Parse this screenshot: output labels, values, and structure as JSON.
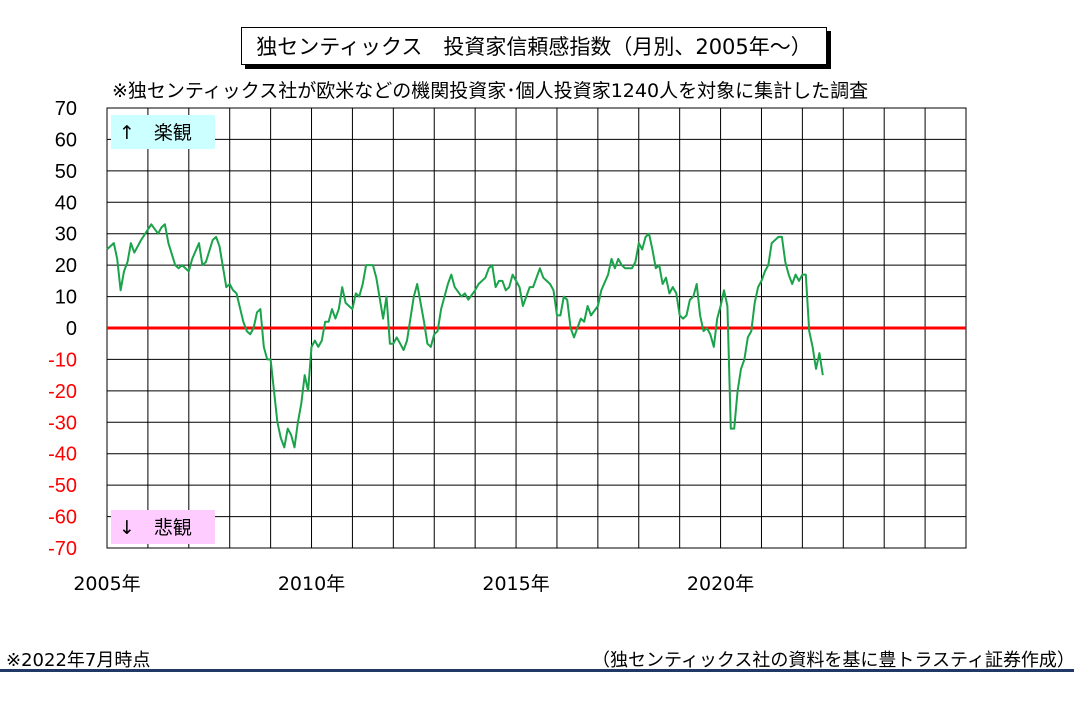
{
  "title": "独センティックス　投資家信頼感指数（月別、2005年～）",
  "subtitle": "※独センティックス社が欧米などの機関投資家･個人投資家1240人を対象に集計した調査",
  "note_left": "※2022年7月時点",
  "note_right": "（独センティックス社の資料を基に豊トラスティ証券作成）",
  "annotations": {
    "optimistic": "↑　楽観",
    "pessimistic": "↓　悲観"
  },
  "colors": {
    "line": "#1aa34a",
    "zero_line": "#ff0000",
    "positive_ticks": "#000000",
    "negative_ticks": "#ff0000",
    "optimistic_bg": "#ccffff",
    "pessimistic_bg": "#ffccff",
    "footer_line": "#1f3864"
  },
  "chart_data": {
    "type": "line",
    "title": "独センティックス　投資家信頼感指数（月別、2005年～）",
    "xlabel": "",
    "ylabel": "",
    "ylim": [
      -70,
      70
    ],
    "yticks": [
      70,
      60,
      50,
      40,
      30,
      20,
      10,
      0,
      -10,
      -20,
      -30,
      -40,
      -50,
      -60,
      -70
    ],
    "ytick_labels": [
      "70",
      "60",
      "50",
      "40",
      "30",
      "20",
      "10",
      "0",
      "-10",
      "-20",
      "-30",
      "-40",
      "-50",
      "-60",
      "-70"
    ],
    "xlim": [
      "2005-01",
      "2025-12"
    ],
    "xticks": [
      "2005-01",
      "2010-01",
      "2015-01",
      "2020-01"
    ],
    "xtick_labels": [
      "2005年",
      "2010年",
      "2015年",
      "2020年"
    ],
    "grid": true,
    "reference_line": 0,
    "series": [
      {
        "points": [
          [
            "2005-01",
            25
          ],
          [
            "2005-03",
            27
          ],
          [
            "2005-04",
            22
          ],
          [
            "2005-05",
            12
          ],
          [
            "2005-06",
            18
          ],
          [
            "2005-07",
            21
          ],
          [
            "2005-08",
            27
          ],
          [
            "2005-09",
            24
          ],
          [
            "2005-11",
            28
          ],
          [
            "2006-02",
            33
          ],
          [
            "2006-04",
            30
          ],
          [
            "2006-05",
            32
          ],
          [
            "2006-06",
            33
          ],
          [
            "2006-07",
            27
          ],
          [
            "2006-09",
            20
          ],
          [
            "2006-10",
            19
          ],
          [
            "2006-11",
            20
          ],
          [
            "2007-01",
            18
          ],
          [
            "2007-02",
            22
          ],
          [
            "2007-04",
            27
          ],
          [
            "2007-05",
            20
          ],
          [
            "2007-06",
            21
          ],
          [
            "2007-08",
            28
          ],
          [
            "2007-09",
            29
          ],
          [
            "2007-10",
            26
          ],
          [
            "2007-12",
            13
          ],
          [
            "2008-01",
            14
          ],
          [
            "2008-02",
            12
          ],
          [
            "2008-03",
            11
          ],
          [
            "2008-05",
            2
          ],
          [
            "2008-06",
            -1
          ],
          [
            "2008-07",
            -2
          ],
          [
            "2008-08",
            0
          ],
          [
            "2008-09",
            5
          ],
          [
            "2008-10",
            6
          ],
          [
            "2008-11",
            -6
          ],
          [
            "2008-12",
            -10
          ],
          [
            "2009-01",
            -10
          ],
          [
            "2009-02",
            -20
          ],
          [
            "2009-03",
            -30
          ],
          [
            "2009-04",
            -35
          ],
          [
            "2009-05",
            -38
          ],
          [
            "2009-06",
            -32
          ],
          [
            "2009-07",
            -34
          ],
          [
            "2009-08",
            -38
          ],
          [
            "2009-09",
            -30
          ],
          [
            "2009-10",
            -24
          ],
          [
            "2009-11",
            -15
          ],
          [
            "2009-12",
            -20
          ],
          [
            "2010-01",
            -6
          ],
          [
            "2010-02",
            -4
          ],
          [
            "2010-03",
            -6
          ],
          [
            "2010-04",
            -4
          ],
          [
            "2010-05",
            2
          ],
          [
            "2010-06",
            2
          ],
          [
            "2010-07",
            6
          ],
          [
            "2010-08",
            3
          ],
          [
            "2010-09",
            6
          ],
          [
            "2010-10",
            13
          ],
          [
            "2010-11",
            8
          ],
          [
            "2011-01",
            6
          ],
          [
            "2011-02",
            11
          ],
          [
            "2011-03",
            10
          ],
          [
            "2011-04",
            14
          ],
          [
            "2011-05",
            20
          ],
          [
            "2011-07",
            20
          ],
          [
            "2011-08",
            16
          ],
          [
            "2011-10",
            3
          ],
          [
            "2011-11",
            10
          ],
          [
            "2011-12",
            -5
          ],
          [
            "2012-01",
            -5
          ],
          [
            "2012-02",
            -3
          ],
          [
            "2012-03",
            -5
          ],
          [
            "2012-04",
            -7
          ],
          [
            "2012-05",
            -4
          ],
          [
            "2012-06",
            3
          ],
          [
            "2012-07",
            10
          ],
          [
            "2012-08",
            14
          ],
          [
            "2012-09",
            8
          ],
          [
            "2012-10",
            2
          ],
          [
            "2012-11",
            -5
          ],
          [
            "2012-12",
            -6
          ],
          [
            "2013-01",
            -2
          ],
          [
            "2013-02",
            -1
          ],
          [
            "2013-03",
            6
          ],
          [
            "2013-04",
            10
          ],
          [
            "2013-05",
            14
          ],
          [
            "2013-06",
            17
          ],
          [
            "2013-07",
            13
          ],
          [
            "2013-09",
            10
          ],
          [
            "2013-10",
            11
          ],
          [
            "2013-11",
            9
          ],
          [
            "2014-01",
            12
          ],
          [
            "2014-02",
            14
          ],
          [
            "2014-04",
            16
          ],
          [
            "2014-05",
            19
          ],
          [
            "2014-06",
            20
          ],
          [
            "2014-07",
            13
          ],
          [
            "2014-08",
            15
          ],
          [
            "2014-09",
            15
          ],
          [
            "2014-10",
            12
          ],
          [
            "2014-11",
            13
          ],
          [
            "2014-12",
            17
          ],
          [
            "2015-02",
            13
          ],
          [
            "2015-03",
            7
          ],
          [
            "2015-05",
            13
          ],
          [
            "2015-06",
            13
          ],
          [
            "2015-08",
            19
          ],
          [
            "2015-09",
            16
          ],
          [
            "2015-10",
            15
          ],
          [
            "2015-11",
            14
          ],
          [
            "2015-12",
            12
          ],
          [
            "2016-01",
            4
          ],
          [
            "2016-02",
            4
          ],
          [
            "2016-03",
            10
          ],
          [
            "2016-04",
            9
          ],
          [
            "2016-05",
            0
          ],
          [
            "2016-06",
            -3
          ],
          [
            "2016-07",
            0
          ],
          [
            "2016-08",
            3
          ],
          [
            "2016-09",
            2
          ],
          [
            "2016-10",
            7
          ],
          [
            "2016-11",
            4
          ],
          [
            "2017-01",
            7
          ],
          [
            "2017-02",
            12
          ],
          [
            "2017-04",
            17
          ],
          [
            "2017-05",
            22
          ],
          [
            "2017-06",
            19
          ],
          [
            "2017-07",
            22
          ],
          [
            "2017-08",
            20
          ],
          [
            "2017-09",
            19
          ],
          [
            "2017-11",
            19
          ],
          [
            "2017-12",
            21
          ],
          [
            "2018-01",
            27
          ],
          [
            "2018-02",
            25
          ],
          [
            "2018-03",
            29
          ],
          [
            "2018-04",
            30
          ],
          [
            "2018-05",
            25
          ],
          [
            "2018-06",
            19
          ],
          [
            "2018-07",
            20
          ],
          [
            "2018-08",
            14
          ],
          [
            "2018-09",
            16
          ],
          [
            "2018-10",
            11
          ],
          [
            "2018-11",
            13
          ],
          [
            "2018-12",
            11
          ],
          [
            "2019-01",
            4
          ],
          [
            "2019-02",
            3
          ],
          [
            "2019-03",
            4
          ],
          [
            "2019-04",
            9
          ],
          [
            "2019-05",
            10
          ],
          [
            "2019-06",
            14
          ],
          [
            "2019-07",
            4
          ],
          [
            "2019-08",
            -1
          ],
          [
            "2019-09",
            0
          ],
          [
            "2019-10",
            -2
          ],
          [
            "2019-11",
            -6
          ],
          [
            "2019-12",
            3
          ],
          [
            "2020-01",
            7
          ],
          [
            "2020-02",
            12
          ],
          [
            "2020-03",
            7
          ],
          [
            "2020-04",
            -32
          ],
          [
            "2020-05",
            -32
          ],
          [
            "2020-06",
            -20
          ],
          [
            "2020-07",
            -13
          ],
          [
            "2020-08",
            -10
          ],
          [
            "2020-09",
            -3
          ],
          [
            "2020-10",
            -1
          ],
          [
            "2020-11",
            8
          ],
          [
            "2020-12",
            13
          ],
          [
            "2021-01",
            15
          ],
          [
            "2021-02",
            18
          ],
          [
            "2021-03",
            20
          ],
          [
            "2021-04",
            27
          ],
          [
            "2021-06",
            29
          ],
          [
            "2021-07",
            29
          ],
          [
            "2021-08",
            21
          ],
          [
            "2021-09",
            17
          ],
          [
            "2021-10",
            14
          ],
          [
            "2021-11",
            17
          ],
          [
            "2021-12",
            15
          ],
          [
            "2022-01",
            17
          ],
          [
            "2022-02",
            17
          ],
          [
            "2022-03",
            -1
          ],
          [
            "2022-04",
            -6
          ],
          [
            "2022-05",
            -13
          ],
          [
            "2022-06",
            -8
          ],
          [
            "2022-07",
            -15
          ]
        ]
      }
    ]
  }
}
